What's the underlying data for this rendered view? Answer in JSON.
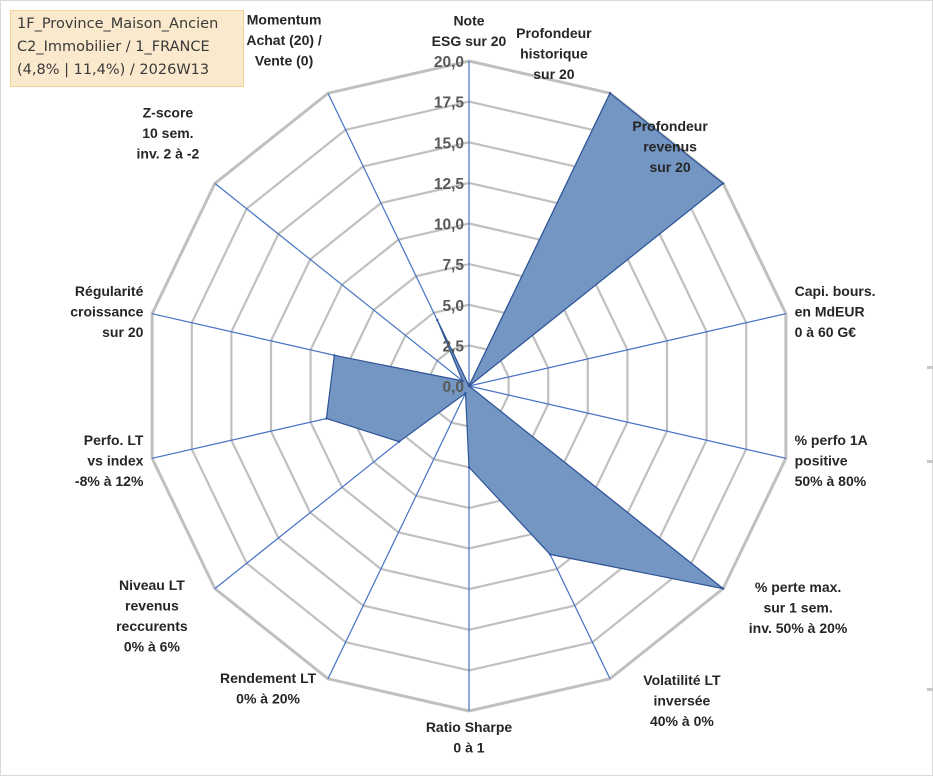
{
  "title": {
    "line1": "1F_Province_Maison_Ancien",
    "line2": "C2_Immobilier / 1_FRANCE",
    "line3": "(4,8% | 11,4%) / 2026W13"
  },
  "colors": {
    "fill": "#7396c3",
    "outline": "#2f5597",
    "grid": "#c0c0c0",
    "spoke": "#4472c4",
    "tick_text": "#595959",
    "title_bg": "#fbe9cd"
  },
  "chart_data": {
    "type": "radar",
    "rmin": 0,
    "rmax": 20,
    "grid_step": 2.5,
    "ticks": [
      "0,0",
      "2,5",
      "5,0",
      "7,5",
      "10,0",
      "12,5",
      "15,0",
      "17,5",
      "20,0"
    ],
    "axes": [
      [
        "Note",
        "ESG sur 20"
      ],
      [
        "Profondeur",
        "historique",
        "sur 20"
      ],
      [
        "Profondeur",
        "revenus",
        "sur 20"
      ],
      [
        "Capi. bours.",
        "en MdEUR",
        "0 à 60 G€"
      ],
      [
        "% perfo 1A",
        "positive",
        "50% à 80%"
      ],
      [
        "% perte max.",
        "sur 1 sem.",
        "inv. 50% à 20%"
      ],
      [
        "Volatilité LT",
        "inversée",
        "40% à 0%"
      ],
      [
        "Ratio Sharpe",
        "0 à 1"
      ],
      [
        "Rendement LT",
        "0% à 20%"
      ],
      [
        "Niveau LT",
        "revenus",
        "reccurents",
        "0% à 6%"
      ],
      [
        "Perfo. LT",
        "vs index",
        "-8% à 12%"
      ],
      [
        "Régularité",
        "croissance",
        "sur 20"
      ],
      [
        "Z-score",
        "10 sem.",
        "inv. 2 à -2"
      ],
      [
        "Momentum",
        "Achat (20) /",
        "Vente (0)"
      ]
    ],
    "series": [
      {
        "name": "1F_Province_Maison_Ancien",
        "values": [
          0.0,
          20.0,
          20.0,
          0.0,
          0.0,
          20.0,
          11.5,
          5.0,
          0.5,
          5.5,
          9.0,
          8.5,
          0.5,
          4.5
        ]
      }
    ]
  }
}
